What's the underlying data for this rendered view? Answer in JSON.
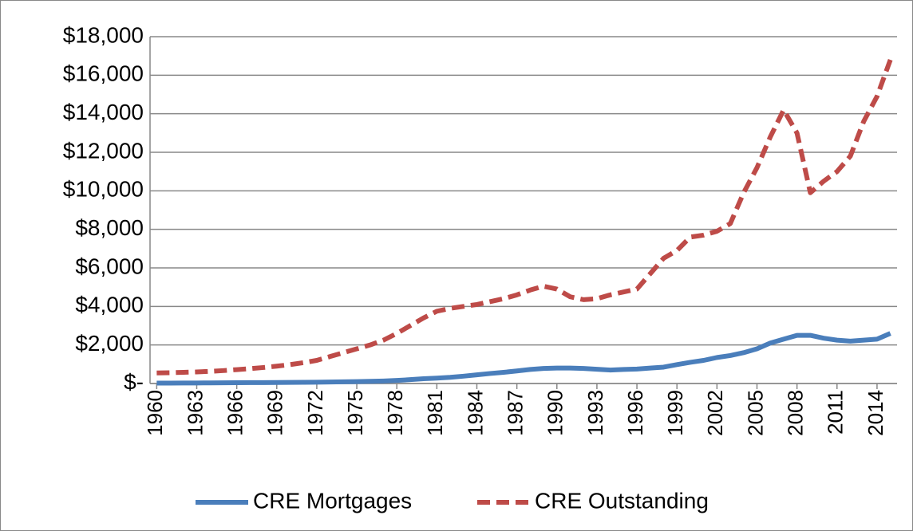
{
  "chart_data": {
    "type": "line",
    "x": [
      1960,
      1961,
      1962,
      1963,
      1964,
      1965,
      1966,
      1967,
      1968,
      1969,
      1970,
      1971,
      1972,
      1973,
      1974,
      1975,
      1976,
      1977,
      1978,
      1979,
      1980,
      1981,
      1982,
      1983,
      1984,
      1985,
      1986,
      1987,
      1988,
      1989,
      1990,
      1991,
      1992,
      1993,
      1994,
      1995,
      1996,
      1997,
      1998,
      1999,
      2000,
      2001,
      2002,
      2003,
      2004,
      2005,
      2006,
      2007,
      2008,
      2009,
      2010,
      2011,
      2012,
      2013,
      2014,
      2015
    ],
    "series": [
      {
        "name": "CRE Mortgages",
        "color": "#4a7ebb",
        "dash": false,
        "values": [
          20,
          22,
          25,
          28,
          32,
          36,
          40,
          44,
          48,
          52,
          56,
          60,
          68,
          78,
          88,
          100,
          115,
          130,
          160,
          200,
          250,
          280,
          320,
          380,
          450,
          520,
          580,
          650,
          730,
          780,
          800,
          800,
          780,
          740,
          700,
          730,
          750,
          800,
          850,
          980,
          1100,
          1200,
          1350,
          1450,
          1600,
          1800,
          2100,
          2300,
          2500,
          2500,
          2350,
          2250,
          2200,
          2250,
          2300,
          2600
        ]
      },
      {
        "name": "CRE Outstanding",
        "color": "#be4b48",
        "dash": true,
        "values": [
          550,
          560,
          580,
          600,
          630,
          670,
          720,
          770,
          830,
          900,
          980,
          1080,
          1200,
          1400,
          1600,
          1800,
          2000,
          2250,
          2600,
          3000,
          3400,
          3750,
          3900,
          4000,
          4100,
          4250,
          4400,
          4600,
          4850,
          5050,
          4900,
          4500,
          4350,
          4400,
          4600,
          4750,
          4900,
          5700,
          6500,
          6900,
          7600,
          7700,
          7900,
          8300,
          9900,
          11200,
          12800,
          14200,
          13000,
          9900,
          10500,
          11000,
          11800,
          13600,
          14900,
          16800
        ]
      }
    ],
    "xlim": [
      1959.5,
      2015.5
    ],
    "xticks": [
      1960,
      1963,
      1966,
      1969,
      1972,
      1975,
      1978,
      1981,
      1984,
      1987,
      1990,
      1993,
      1996,
      1999,
      2002,
      2005,
      2008,
      2011,
      2014
    ],
    "ylim": [
      0,
      18000
    ],
    "yticks": [
      {
        "value": 0,
        "label": "$-"
      },
      {
        "value": 2000,
        "label": "$2,000"
      },
      {
        "value": 4000,
        "label": "$4,000"
      },
      {
        "value": 6000,
        "label": "$6,000"
      },
      {
        "value": 8000,
        "label": "$8,000"
      },
      {
        "value": 10000,
        "label": "$10,000"
      },
      {
        "value": 12000,
        "label": "$12,000"
      },
      {
        "value": 14000,
        "label": "$14,000"
      },
      {
        "value": 16000,
        "label": "$16,000"
      },
      {
        "value": 18000,
        "label": "$18,000"
      }
    ],
    "grid": true,
    "legend": "bottom"
  }
}
